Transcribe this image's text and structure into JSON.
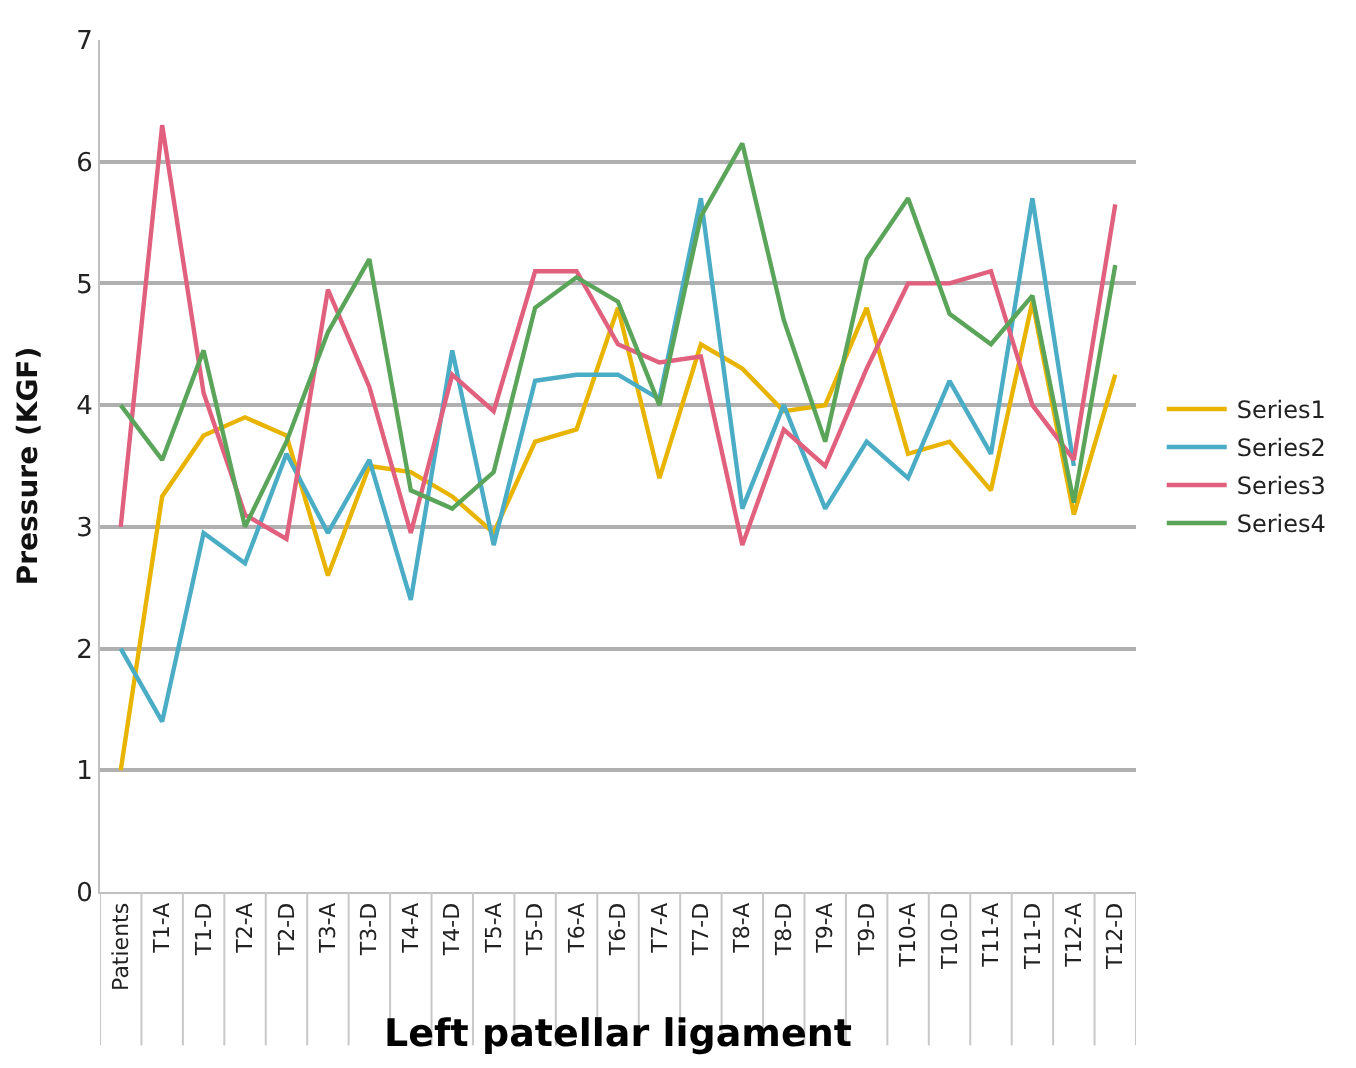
{
  "chart_data": {
    "type": "line",
    "xlabel": "Left patellar ligament",
    "ylabel": "Pressure (KGF)",
    "categories": [
      "Patients",
      "T1-A",
      "T1-D",
      "T2-A",
      "T2-D",
      "T3-A",
      "T3-D",
      "T4-A",
      "T4-D",
      "T5-A",
      "T5-D",
      "T6-A",
      "T6-D",
      "T7-A",
      "T7-D",
      "T8-A",
      "T8-D",
      "T9-A",
      "T9-D",
      "T10-A",
      "T10-D",
      "T11-A",
      "T11-D",
      "T12-A",
      "T12-D"
    ],
    "series": [
      {
        "name": "Series1",
        "color": "#e8b400",
        "values": [
          1,
          3.25,
          3.75,
          3.9,
          3.75,
          2.6,
          3.5,
          3.45,
          3.25,
          2.95,
          3.7,
          3.8,
          4.8,
          3.4,
          4.5,
          4.3,
          3.95,
          4.0,
          4.8,
          3.6,
          3.7,
          3.3,
          4.85,
          3.1,
          4.25
        ]
      },
      {
        "name": "Series2",
        "color": "#4bacc6",
        "values": [
          2,
          1.4,
          2.95,
          2.7,
          3.6,
          2.95,
          3.55,
          2.4,
          4.45,
          2.85,
          4.2,
          4.25,
          4.25,
          4.05,
          5.7,
          3.15,
          4.0,
          3.15,
          3.7,
          3.4,
          4.2,
          3.6,
          5.7,
          3.5,
          null
        ]
      },
      {
        "name": "Series3",
        "color": "#e0607e",
        "values": [
          3,
          6.3,
          4.1,
          3.1,
          2.9,
          4.95,
          4.15,
          2.95,
          4.25,
          3.95,
          5.1,
          5.1,
          4.5,
          4.35,
          4.4,
          2.85,
          3.8,
          3.5,
          4.3,
          5.0,
          5.0,
          5.1,
          4.0,
          3.55,
          5.65
        ]
      },
      {
        "name": "Series4",
        "color": "#5aa55a",
        "values": [
          4,
          3.55,
          4.45,
          3.0,
          3.7,
          4.6,
          5.2,
          3.3,
          3.15,
          3.45,
          4.8,
          5.05,
          4.85,
          4.0,
          5.55,
          6.15,
          4.7,
          3.7,
          5.2,
          5.7,
          4.75,
          4.5,
          4.9,
          3.2,
          5.15
        ]
      }
    ],
    "ylim": [
      0,
      7
    ],
    "yticks": [
      0,
      1,
      2,
      3,
      4,
      5,
      6,
      7
    ],
    "grid": "y",
    "legend": "right",
    "marker": "none",
    "line_style": "solid"
  }
}
